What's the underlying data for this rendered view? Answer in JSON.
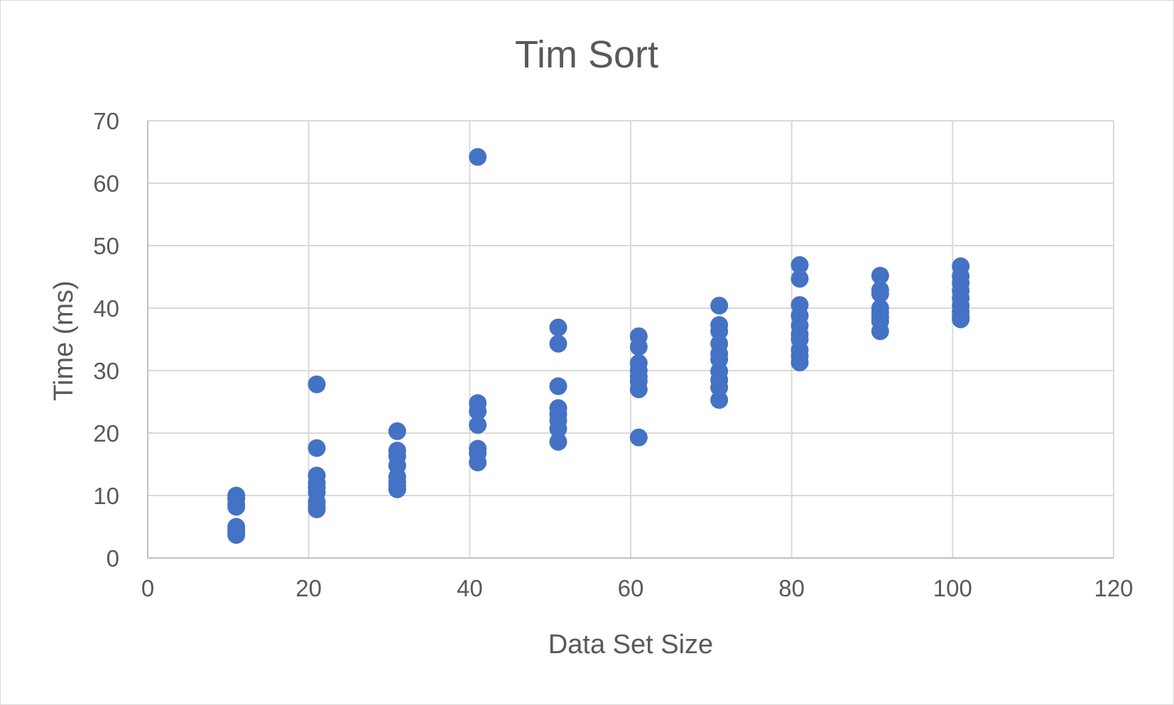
{
  "chart_data": {
    "type": "scatter",
    "title": "Tim Sort",
    "xlabel": "Data Set Size",
    "ylabel": "Time (ms)",
    "xlim": [
      0,
      120
    ],
    "ylim": [
      0,
      70
    ],
    "x_ticks": [
      "0",
      "20",
      "40",
      "60",
      "80",
      "100",
      "120"
    ],
    "y_ticks": [
      "0",
      "10",
      "20",
      "30",
      "40",
      "50",
      "60",
      "70"
    ],
    "grid": true,
    "legend": "none",
    "marker_color": "#4472C4",
    "series": [
      {
        "points": [
          [
            11,
            10.0
          ],
          [
            11,
            9.5
          ],
          [
            11,
            8.6
          ],
          [
            11,
            8.2
          ],
          [
            11,
            5.0
          ],
          [
            11,
            4.5
          ],
          [
            11,
            4.0
          ],
          [
            11,
            3.7
          ],
          [
            21,
            27.8
          ],
          [
            21,
            17.6
          ],
          [
            21,
            13.2
          ],
          [
            21,
            12.0
          ],
          [
            21,
            11.3
          ],
          [
            21,
            10.5
          ],
          [
            21,
            9.0
          ],
          [
            21,
            8.3
          ],
          [
            21,
            7.8
          ],
          [
            31,
            20.3
          ],
          [
            31,
            17.2
          ],
          [
            31,
            16.3
          ],
          [
            31,
            14.8
          ],
          [
            31,
            13.0
          ],
          [
            31,
            12.2
          ],
          [
            31,
            11.5
          ],
          [
            31,
            11.0
          ],
          [
            41,
            64.2
          ],
          [
            41,
            24.8
          ],
          [
            41,
            23.5
          ],
          [
            41,
            21.3
          ],
          [
            41,
            17.5
          ],
          [
            41,
            16.8
          ],
          [
            41,
            15.3
          ],
          [
            51,
            36.9
          ],
          [
            51,
            34.3
          ],
          [
            51,
            27.5
          ],
          [
            51,
            24.0
          ],
          [
            51,
            23.0
          ],
          [
            51,
            22.0
          ],
          [
            51,
            20.7
          ],
          [
            51,
            18.6
          ],
          [
            61,
            35.5
          ],
          [
            61,
            33.8
          ],
          [
            61,
            31.2
          ],
          [
            61,
            30.0
          ],
          [
            61,
            29.0
          ],
          [
            61,
            28.3
          ],
          [
            61,
            27.0
          ],
          [
            61,
            19.3
          ],
          [
            71,
            40.4
          ],
          [
            71,
            37.3
          ],
          [
            71,
            36.3
          ],
          [
            71,
            34.3
          ],
          [
            71,
            32.7
          ],
          [
            71,
            31.8
          ],
          [
            71,
            29.9
          ],
          [
            71,
            28.5
          ],
          [
            71,
            27.3
          ],
          [
            71,
            25.3
          ],
          [
            81,
            46.9
          ],
          [
            81,
            44.7
          ],
          [
            81,
            40.5
          ],
          [
            81,
            38.8
          ],
          [
            81,
            37.2
          ],
          [
            81,
            35.8
          ],
          [
            81,
            35.0
          ],
          [
            81,
            33.3
          ],
          [
            81,
            32.3
          ],
          [
            81,
            31.3
          ],
          [
            91,
            45.2
          ],
          [
            91,
            42.9
          ],
          [
            91,
            42.3
          ],
          [
            91,
            40.0
          ],
          [
            91,
            39.3
          ],
          [
            91,
            38.6
          ],
          [
            91,
            37.9
          ],
          [
            91,
            36.3
          ],
          [
            101,
            46.7
          ],
          [
            101,
            45.1
          ],
          [
            101,
            44.0
          ],
          [
            101,
            42.8
          ],
          [
            101,
            41.6
          ],
          [
            101,
            40.4
          ],
          [
            101,
            39.4
          ],
          [
            101,
            38.6
          ],
          [
            101,
            38.2
          ]
        ]
      }
    ]
  }
}
